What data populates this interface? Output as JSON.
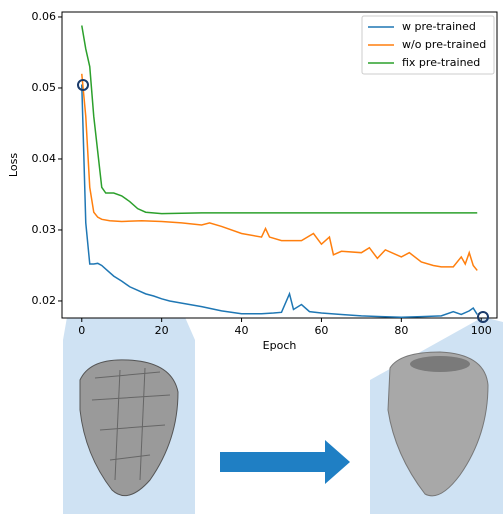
{
  "chart_data": {
    "type": "line",
    "x_label": "Epoch",
    "y_label": "Loss",
    "xlim": [
      -4.95,
      103.95
    ],
    "xticks": [
      0,
      20,
      40,
      60,
      80,
      100
    ],
    "ylim": [
      0.0176,
      0.0607
    ],
    "yticks": [
      0.02,
      0.03,
      0.04,
      0.05,
      0.06
    ],
    "legend": "upper right",
    "series": [
      {
        "name": "w pre-trained",
        "color": "#1f77b4",
        "x": [
          0,
          1,
          2,
          3,
          4,
          5,
          6,
          8,
          10,
          12,
          14,
          16,
          18,
          20,
          22,
          25,
          30,
          35,
          40,
          45,
          48,
          50,
          52,
          53,
          55,
          57,
          60,
          65,
          70,
          75,
          80,
          85,
          90,
          93,
          95,
          97,
          98,
          99
        ],
        "values": [
          0.0505,
          0.031,
          0.0252,
          0.0252,
          0.0253,
          0.025,
          0.0245,
          0.0235,
          0.0228,
          0.022,
          0.0215,
          0.021,
          0.0207,
          0.0203,
          0.02,
          0.0197,
          0.0192,
          0.0186,
          0.0182,
          0.0182,
          0.0183,
          0.0184,
          0.021,
          0.0188,
          0.0195,
          0.0185,
          0.0183,
          0.0181,
          0.0179,
          0.0178,
          0.0177,
          0.0178,
          0.0179,
          0.0185,
          0.0181,
          0.0186,
          0.019,
          0.0181
        ]
      },
      {
        "name": "w/o pre-trained",
        "color": "#ff7f0e",
        "x": [
          0,
          1,
          2,
          3,
          4,
          5,
          7,
          10,
          15,
          20,
          25,
          30,
          32,
          35,
          40,
          45,
          46,
          47,
          50,
          55,
          58,
          60,
          62,
          63,
          65,
          70,
          72,
          74,
          76,
          80,
          82,
          85,
          88,
          90,
          93,
          95,
          96,
          97,
          98,
          99
        ],
        "values": [
          0.052,
          0.046,
          0.036,
          0.0325,
          0.0318,
          0.0315,
          0.0313,
          0.0312,
          0.0313,
          0.0312,
          0.031,
          0.0307,
          0.031,
          0.0305,
          0.0295,
          0.029,
          0.0302,
          0.029,
          0.0285,
          0.0285,
          0.0295,
          0.028,
          0.029,
          0.0265,
          0.027,
          0.0268,
          0.0275,
          0.026,
          0.0272,
          0.0262,
          0.0268,
          0.0255,
          0.025,
          0.0248,
          0.0248,
          0.0262,
          0.0252,
          0.0268,
          0.025,
          0.0243
        ]
      },
      {
        "name": "fix pre-trained",
        "color": "#2ca02c",
        "x": [
          0,
          1,
          2,
          3,
          4,
          5,
          6,
          8,
          10,
          12,
          14,
          16,
          20,
          30,
          40,
          50,
          60,
          70,
          80,
          90,
          99
        ],
        "values": [
          0.0588,
          0.0555,
          0.053,
          0.046,
          0.041,
          0.036,
          0.0352,
          0.0352,
          0.0348,
          0.034,
          0.033,
          0.0325,
          0.0323,
          0.0324,
          0.0324,
          0.0324,
          0.0324,
          0.0324,
          0.0324,
          0.0324,
          0.0324
        ]
      }
    ]
  }
}
